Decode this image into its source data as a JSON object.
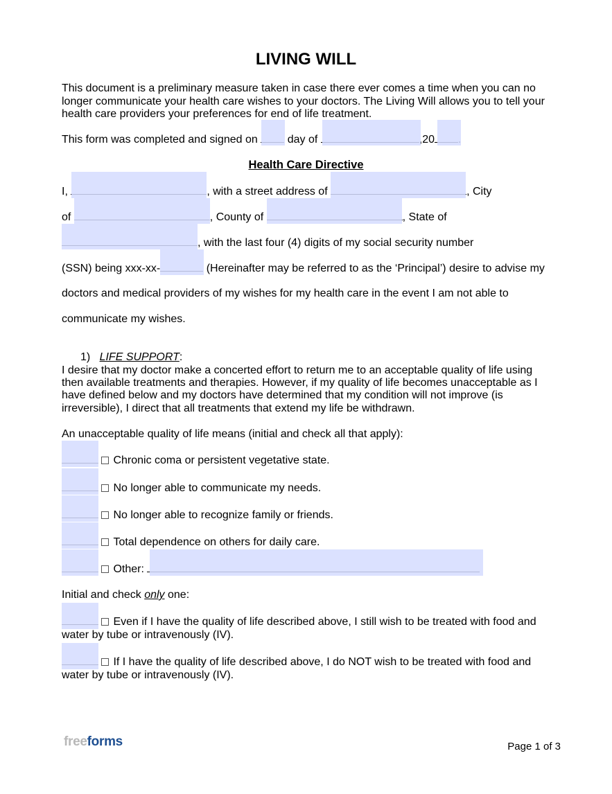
{
  "title": "LIVING WILL",
  "intro": [
    "This document is a preliminary measure taken in case there ever comes a time when you can no",
    "longer communicate your health care wishes to your doctors. The Living Will allows you to tell your",
    "health care providers your preferences for end of life treatment."
  ],
  "date_line": {
    "a": "This form was completed and signed on",
    "b": "day of",
    "c": ",20",
    "d": "."
  },
  "heading": "Health Care Directive",
  "directive": {
    "l1a": "I,",
    "l1b": ", with a street address of",
    "l1c": ", City",
    "l2a": "of",
    "l2b": ", County of",
    "l2c": ", State of",
    "l3": ", with the last four (4) digits of my social security number",
    "l4a": "(SSN) being xxx-xx-",
    "l4b": " (Hereinafter may be referred to as the ‘Principal’) desire to advise my",
    "l5": "doctors and medical providers of my wishes for my health care in the event I am not able to",
    "l6": "communicate my wishes."
  },
  "section1": {
    "number": "1)",
    "label": "LIFE SUPPORT",
    "colon": ":",
    "para": [
      "I desire that my doctor make a concerted effort to return me to an acceptable quality of life using",
      "then available treatments and therapies. However, if my quality of life becomes unacceptable as I",
      "have defined below and my doctors have determined that my condition will not improve (is",
      "irreversible), I direct that all treatments that extend my life be withdrawn."
    ],
    "unacceptable_label": "An unacceptable quality of life means (initial and check all that apply):",
    "options": [
      "Chronic coma or persistent vegetative state.",
      "No longer able to communicate my needs.",
      "No longer able to recognize family or friends.",
      "Total dependence on others for daily care.",
      "Other:"
    ],
    "only_a": "Initial and check ",
    "only_b": "only",
    "only_c": " one:",
    "choice1": [
      "Even if I have the quality of life described above, I still wish to be treated with food and",
      "water by tube or intravenously (IV)."
    ],
    "choice2": [
      "If I have the quality of life described above, I do NOT wish to be treated with food and",
      "water by tube or intravenously (IV)."
    ]
  },
  "footer": {
    "logo_a": "free",
    "logo_b": "forms",
    "page": "Page 1 of 3"
  },
  "colors": {
    "field": "#d5dcff",
    "logo_grey": "#b8b8b8",
    "logo_blue": "#1e4f91"
  }
}
